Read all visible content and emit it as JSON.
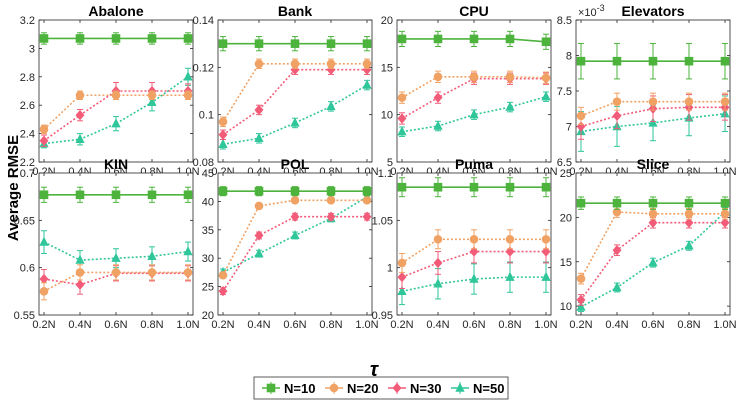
{
  "figure": {
    "ylabel": "Average RMSE",
    "xlabel": "τ"
  },
  "legend": {
    "placement": "bottom-center",
    "items": [
      {
        "label": "N=10",
        "color": "#4DB33D",
        "marker": "square"
      },
      {
        "label": "N=20",
        "color": "#F0A264",
        "marker": "circle"
      },
      {
        "label": "N=30",
        "color": "#F25C78",
        "marker": "diamond"
      },
      {
        "label": "N=50",
        "color": "#2FC69A",
        "marker": "triangle"
      }
    ]
  },
  "chart_data": [
    {
      "type": "line",
      "title": "Abalone",
      "categories": [
        "0.2N",
        "0.4N",
        "0.6N",
        "0.8N",
        "1.0N"
      ],
      "ylim": [
        2.2,
        3.2
      ],
      "yticks": [
        "2.2",
        "2.4",
        "2.6",
        "2.8",
        "3",
        "3.2"
      ],
      "grid": false,
      "series": [
        {
          "name": "N=10",
          "values": [
            3.07,
            3.07,
            3.07,
            3.07,
            3.07
          ],
          "err": [
            0.04,
            0.04,
            0.04,
            0.04,
            0.04
          ]
        },
        {
          "name": "N=20",
          "values": [
            2.43,
            2.67,
            2.67,
            2.67,
            2.67
          ],
          "err": [
            0.03,
            0.03,
            0.03,
            0.03,
            0.03
          ]
        },
        {
          "name": "N=30",
          "values": [
            2.35,
            2.53,
            2.7,
            2.7,
            2.7
          ],
          "err": [
            0.04,
            0.04,
            0.06,
            0.06,
            0.05
          ]
        },
        {
          "name": "N=50",
          "values": [
            2.33,
            2.36,
            2.47,
            2.62,
            2.8
          ],
          "err": [
            0.03,
            0.04,
            0.05,
            0.06,
            0.06
          ]
        }
      ]
    },
    {
      "type": "line",
      "title": "Bank",
      "categories": [
        "0.2N",
        "0.4N",
        "0.6N",
        "0.8N",
        "1.0N"
      ],
      "ylim": [
        0.08,
        0.14
      ],
      "yticks": [
        "0.08",
        "0.1",
        "0.12",
        "0.14"
      ],
      "grid": false,
      "series": [
        {
          "name": "N=10",
          "values": [
            0.13,
            0.13,
            0.13,
            0.13,
            0.13
          ],
          "err": [
            0.003,
            0.003,
            0.003,
            0.003,
            0.003
          ]
        },
        {
          "name": "N=20",
          "values": [
            0.097,
            0.1215,
            0.1215,
            0.1215,
            0.1215
          ],
          "err": [
            0.002,
            0.002,
            0.002,
            0.002,
            0.002
          ]
        },
        {
          "name": "N=30",
          "values": [
            0.0915,
            0.102,
            0.119,
            0.119,
            0.119
          ],
          "err": [
            0.002,
            0.002,
            0.002,
            0.002,
            0.002
          ]
        },
        {
          "name": "N=50",
          "values": [
            0.0875,
            0.09,
            0.0965,
            0.1035,
            0.1125
          ],
          "err": [
            0.002,
            0.002,
            0.002,
            0.002,
            0.002
          ]
        }
      ]
    },
    {
      "type": "line",
      "title": "CPU",
      "categories": [
        "0.2N",
        "0.4N",
        "0.6N",
        "0.8N",
        "1.0N"
      ],
      "ylim": [
        5,
        20
      ],
      "yticks": [
        "5",
        "10",
        "15",
        "20"
      ],
      "grid": false,
      "series": [
        {
          "name": "N=10",
          "values": [
            18,
            18,
            18,
            18,
            17.7
          ],
          "err": [
            0.8,
            0.8,
            0.8,
            0.8,
            0.8
          ]
        },
        {
          "name": "N=20",
          "values": [
            11.8,
            14,
            14,
            14,
            13.9
          ],
          "err": [
            0.6,
            0.6,
            0.6,
            0.6,
            0.6
          ]
        },
        {
          "name": "N=30",
          "values": [
            9.6,
            11.8,
            13.8,
            13.8,
            13.8
          ],
          "err": [
            0.6,
            0.6,
            0.6,
            0.6,
            0.6
          ]
        },
        {
          "name": "N=50",
          "values": [
            8.2,
            8.8,
            10,
            10.8,
            11.9
          ],
          "err": [
            0.5,
            0.5,
            0.5,
            0.5,
            0.5
          ]
        }
      ]
    },
    {
      "type": "line",
      "title": "Elevators",
      "exponent_label": "×10-3",
      "categories": [
        "0.2N",
        "0.4N",
        "0.6N",
        "0.8N",
        "1.0N"
      ],
      "ylim": [
        6.5,
        8.5
      ],
      "yticks": [
        "6.5",
        "7",
        "7.5",
        "8",
        "8.5"
      ],
      "grid": false,
      "series": [
        {
          "name": "N=10",
          "values": [
            7.92,
            7.92,
            7.92,
            7.92,
            7.92
          ],
          "err": [
            0.25,
            0.25,
            0.25,
            0.25,
            0.25
          ]
        },
        {
          "name": "N=20",
          "values": [
            7.15,
            7.35,
            7.35,
            7.35,
            7.35
          ],
          "err": [
            0.12,
            0.12,
            0.12,
            0.12,
            0.12
          ]
        },
        {
          "name": "N=30",
          "values": [
            7.0,
            7.15,
            7.25,
            7.27,
            7.27
          ],
          "err": [
            0.18,
            0.18,
            0.18,
            0.18,
            0.18
          ]
        },
        {
          "name": "N=50",
          "values": [
            6.93,
            7.0,
            7.05,
            7.12,
            7.18
          ],
          "err": [
            0.28,
            0.28,
            0.25,
            0.25,
            0.25
          ]
        }
      ]
    },
    {
      "type": "line",
      "title": "KIN",
      "categories": [
        "0.2N",
        "0.4N",
        "0.6N",
        "0.8N",
        "1.0N"
      ],
      "ylim": [
        0.55,
        0.7
      ],
      "yticks": [
        "0.55",
        "0.6",
        "0.65",
        "0.7"
      ],
      "grid": false,
      "series": [
        {
          "name": "N=10",
          "values": [
            0.677,
            0.677,
            0.677,
            0.677,
            0.677
          ],
          "err": [
            0.008,
            0.008,
            0.008,
            0.008,
            0.008
          ]
        },
        {
          "name": "N=20",
          "values": [
            0.575,
            0.595,
            0.595,
            0.595,
            0.595
          ],
          "err": [
            0.009,
            0.008,
            0.008,
            0.008,
            0.008
          ]
        },
        {
          "name": "N=30",
          "values": [
            0.588,
            0.582,
            0.594,
            0.594,
            0.594
          ],
          "err": [
            0.01,
            0.01,
            0.008,
            0.008,
            0.008
          ]
        },
        {
          "name": "N=50",
          "values": [
            0.627,
            0.608,
            0.61,
            0.612,
            0.617
          ],
          "err": [
            0.012,
            0.01,
            0.01,
            0.01,
            0.01
          ]
        }
      ]
    },
    {
      "type": "line",
      "title": "POL",
      "categories": [
        "0.2N",
        "0.4N",
        "0.6N",
        "0.8N",
        "1.0N"
      ],
      "ylim": [
        20,
        45
      ],
      "yticks": [
        "20",
        "25",
        "30",
        "35",
        "40",
        "45"
      ],
      "grid": false,
      "series": [
        {
          "name": "N=10",
          "values": [
            41.8,
            41.8,
            41.8,
            41.8,
            41.8
          ],
          "err": [
            0.8,
            0.8,
            0.8,
            0.8,
            0.8
          ]
        },
        {
          "name": "N=20",
          "values": [
            27,
            39.2,
            40.2,
            40.2,
            40.2
          ],
          "err": [
            0.5,
            0.5,
            0.5,
            0.5,
            0.5
          ]
        },
        {
          "name": "N=30",
          "values": [
            24.2,
            34,
            37.3,
            37.3,
            37.3
          ],
          "err": [
            0.6,
            0.6,
            0.6,
            0.6,
            0.6
          ]
        },
        {
          "name": "N=50",
          "values": [
            27.5,
            30.8,
            34,
            37,
            40.8
          ],
          "err": [
            0.6,
            0.6,
            0.6,
            0.6,
            0.6
          ]
        }
      ]
    },
    {
      "type": "line",
      "title": "Puma",
      "categories": [
        "0.2N",
        "0.4N",
        "0.6N",
        "0.8N",
        "1.0N"
      ],
      "ylim": [
        0.95,
        1.1
      ],
      "yticks": [
        "0.95",
        "1",
        "1.05",
        "1.1"
      ],
      "grid": false,
      "series": [
        {
          "name": "N=10",
          "values": [
            1.085,
            1.085,
            1.085,
            1.085,
            1.085
          ],
          "err": [
            0.01,
            0.01,
            0.01,
            0.01,
            0.01
          ]
        },
        {
          "name": "N=20",
          "values": [
            1.005,
            1.03,
            1.03,
            1.03,
            1.03
          ],
          "err": [
            0.01,
            0.01,
            0.01,
            0.01,
            0.01
          ]
        },
        {
          "name": "N=30",
          "values": [
            0.99,
            1.005,
            1.017,
            1.017,
            1.017
          ],
          "err": [
            0.012,
            0.012,
            0.012,
            0.012,
            0.012
          ]
        },
        {
          "name": "N=50",
          "values": [
            0.975,
            0.983,
            0.988,
            0.99,
            0.99
          ],
          "err": [
            0.014,
            0.016,
            0.016,
            0.016,
            0.016
          ]
        }
      ]
    },
    {
      "type": "line",
      "title": "Slice",
      "categories": [
        "0.2N",
        "0.4N",
        "0.6N",
        "0.8N",
        "1.0N"
      ],
      "ylim": [
        9,
        25
      ],
      "yticks": [
        "10",
        "15",
        "20",
        "25"
      ],
      "grid": false,
      "series": [
        {
          "name": "N=10",
          "values": [
            21.6,
            21.6,
            21.6,
            21.6,
            21.6
          ],
          "err": [
            0.7,
            0.7,
            0.7,
            0.7,
            0.7
          ]
        },
        {
          "name": "N=20",
          "values": [
            13.1,
            20.6,
            20.4,
            20.4,
            20.4
          ],
          "err": [
            0.6,
            0.6,
            0.6,
            0.6,
            0.6
          ]
        },
        {
          "name": "N=30",
          "values": [
            10.7,
            16.3,
            19.4,
            19.4,
            19.4
          ],
          "err": [
            0.6,
            0.6,
            0.6,
            0.6,
            0.6
          ]
        },
        {
          "name": "N=50",
          "values": [
            9.9,
            12.1,
            14.9,
            16.8,
            20.6
          ],
          "err": [
            0.5,
            0.5,
            0.5,
            0.5,
            0.5
          ]
        }
      ]
    }
  ]
}
